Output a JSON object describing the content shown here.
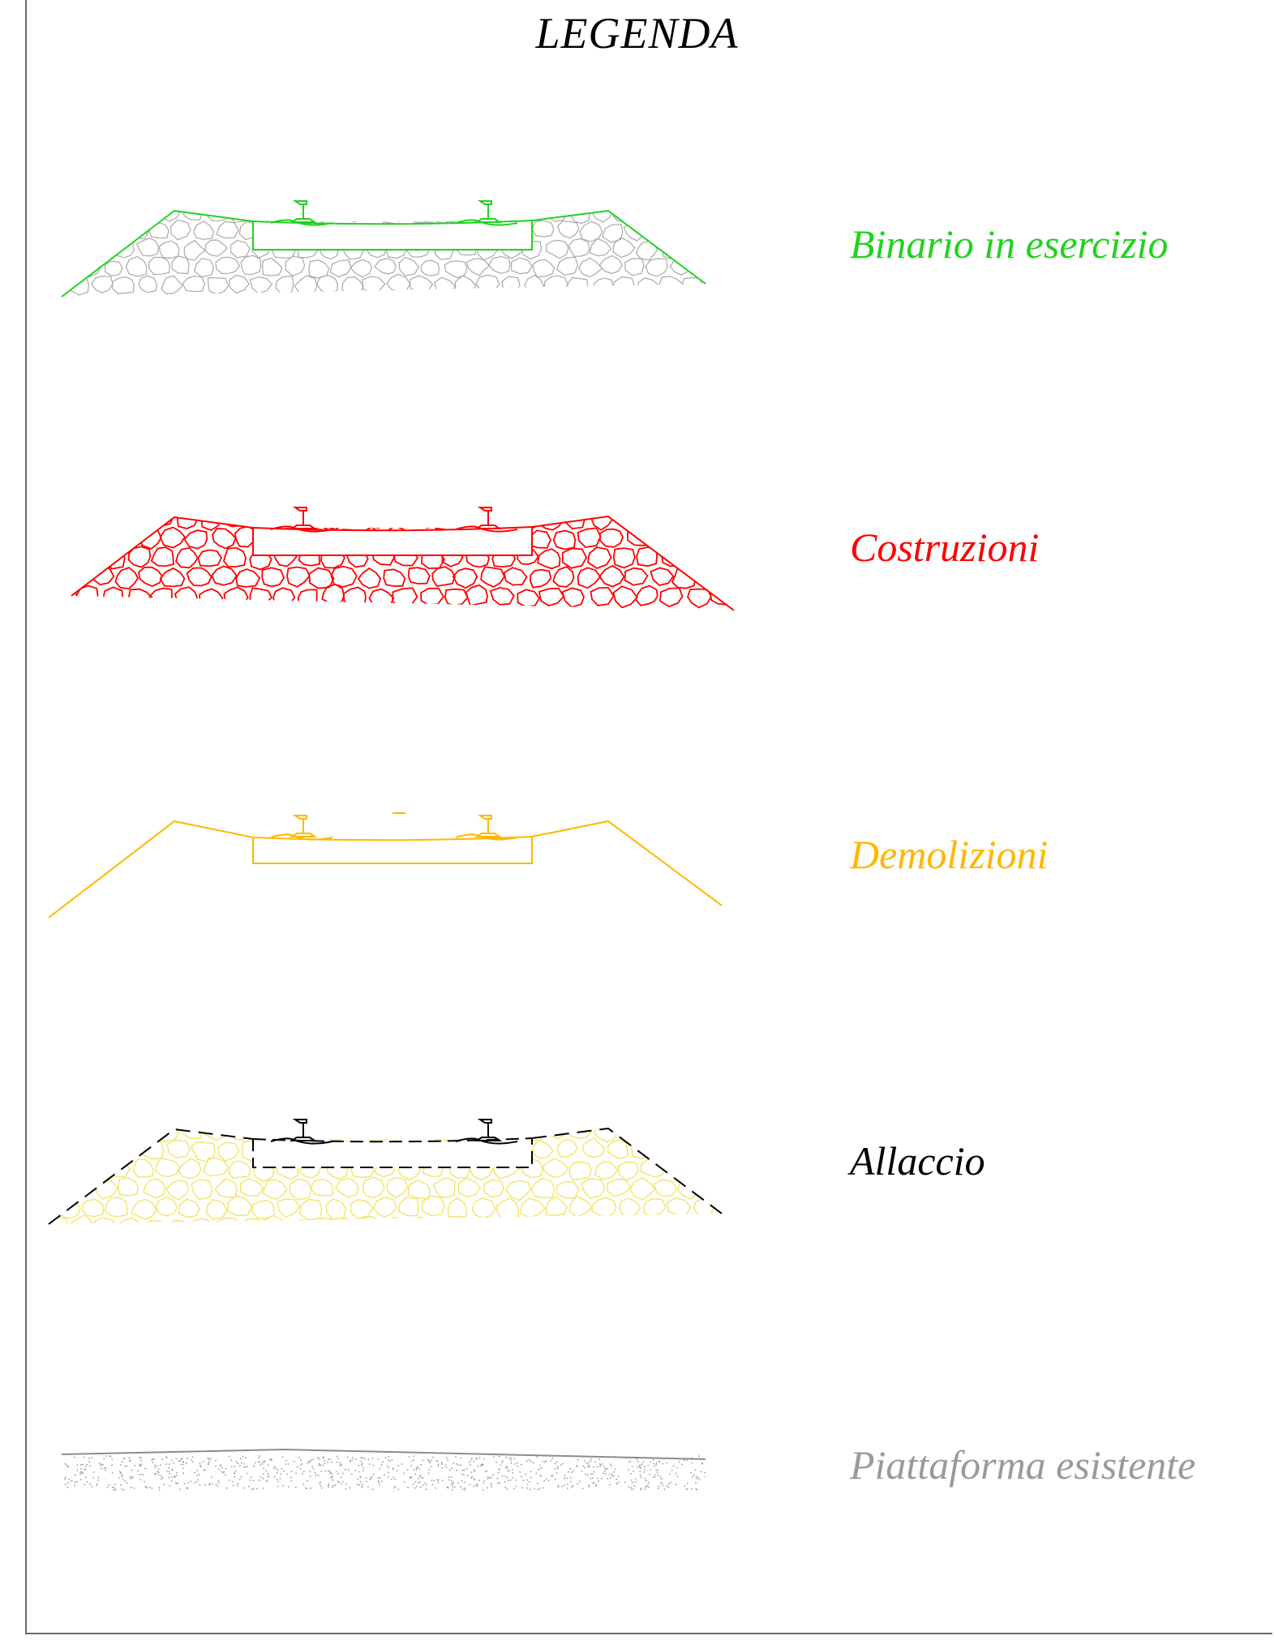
{
  "title": "LEGENDA",
  "items": [
    {
      "label": "Binario in esercizio",
      "color": "#1fd31f",
      "fill_color": "#a9a9a9",
      "fill": "gravel"
    },
    {
      "label": "Costruzioni",
      "color": "#ff0000",
      "fill_color": "#ff0000",
      "fill": "gravel"
    },
    {
      "label": "Demolizioni",
      "color": "#ffb700",
      "fill_color": "",
      "fill": "none"
    },
    {
      "label": "Allaccio",
      "color": "#000000",
      "fill_color": "#f2e56a",
      "fill": "gravel",
      "line_style": "dashed"
    },
    {
      "label": "Piattaforma esistente",
      "color": "#9a9a9a",
      "fill_color": "#9a9a9a",
      "fill": "dots"
    }
  ]
}
